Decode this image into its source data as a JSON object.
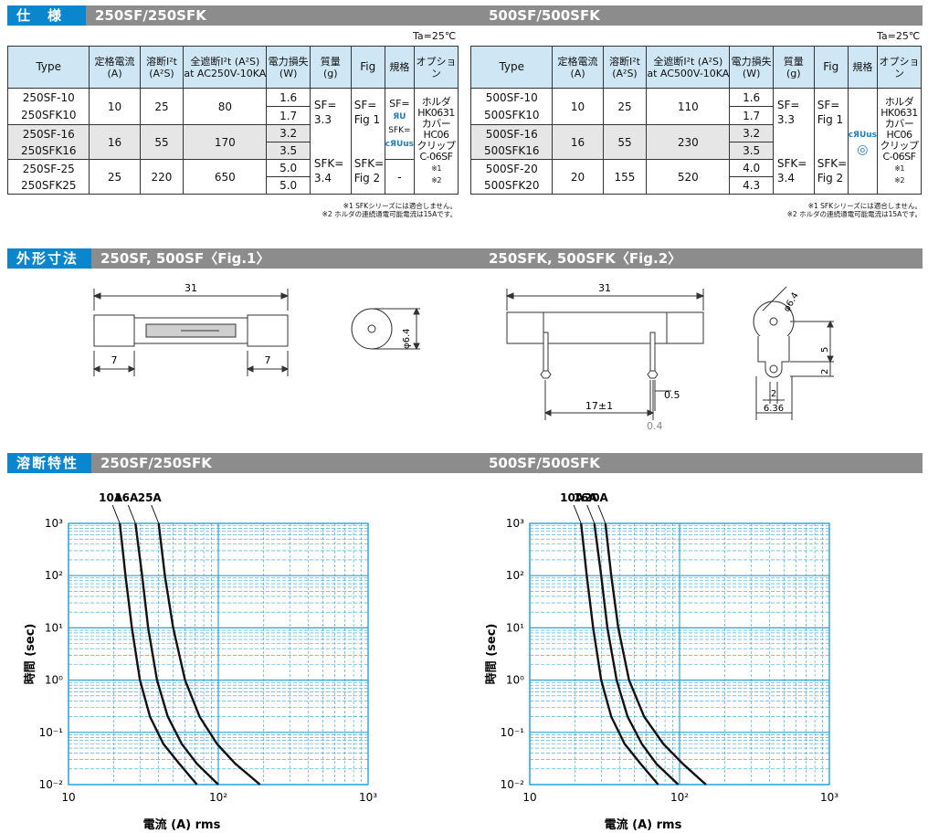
{
  "spec": {
    "tag": "仕　様",
    "title_left": "250SF/250SFK",
    "title_right": "500SF/500SFK",
    "ta": "Ta=25℃",
    "left": {
      "headers": [
        "Type",
        "定格電流\n(A)",
        "溶断I²t\n(A²S)",
        "全遮断I²t (A²S)\nat AC250V-10KA",
        "電力損失\n(W)",
        "質量\n(g)",
        "Fig",
        "規格",
        "オプション"
      ],
      "rows": [
        {
          "types": [
            "250SF-10",
            "250SFK10"
          ],
          "rated": "10",
          "melt": "25",
          "total": "80",
          "loss": [
            "1.6",
            "1.7"
          ]
        },
        {
          "types": [
            "250SF-16",
            "250SFK16"
          ],
          "rated": "16",
          "melt": "55",
          "total": "170",
          "loss": [
            "3.2",
            "3.5"
          ]
        },
        {
          "types": [
            "250SF-25",
            "250SFK25"
          ],
          "rated": "25",
          "melt": "220",
          "total": "650",
          "loss": [
            "5.0",
            "5.0"
          ]
        }
      ],
      "mass": [
        "SF=",
        "3.3",
        "SFK=",
        "3.4"
      ],
      "fig": [
        "SF=",
        "Fig 1",
        "SFK=",
        "Fig 2"
      ],
      "std": [
        "SF=",
        "SFK=",
        "-"
      ],
      "option": [
        "ホルダ",
        "HK0631",
        "カバー",
        "HC06",
        "クリップ",
        "C-06SF",
        "※1",
        "※2"
      ]
    },
    "right": {
      "headers": [
        "Type",
        "定格電流\n(A)",
        "溶断I²t\n(A²S)",
        "全遮断I²t (A²S)\nat AC500V-10KA",
        "電力損失\n(W)",
        "質量\n(g)",
        "Fig",
        "規格",
        "オプション"
      ],
      "rows": [
        {
          "types": [
            "500SF-10",
            "500SFK10"
          ],
          "rated": "10",
          "melt": "25",
          "total": "110",
          "loss": [
            "1.6",
            "1.7"
          ]
        },
        {
          "types": [
            "500SF-16",
            "500SFK16"
          ],
          "rated": "16",
          "melt": "55",
          "total": "230",
          "loss": [
            "3.2",
            "3.5"
          ]
        },
        {
          "types": [
            "500SF-20",
            "500SFK20"
          ],
          "rated": "20",
          "melt": "155",
          "total": "520",
          "loss": [
            "4.0",
            "4.3"
          ]
        }
      ],
      "mass": [
        "SF=",
        "3.3",
        "SFK=",
        "3.4"
      ],
      "fig": [
        "SF=",
        "Fig 1",
        "SFK=",
        "Fig 2"
      ],
      "option": [
        "ホルダ",
        "HK0631",
        "カバー",
        "HC06",
        "クリップ",
        "C-06SF",
        "※1",
        "※2"
      ]
    },
    "notes": [
      "※1 SFKシリーズには適合しません。",
      "※2 ホルダの連続通電可能電流は15Aです。"
    ]
  },
  "dims": {
    "tag": "外形寸法",
    "title_left": "250SF, 500SF〈Fig.1〉",
    "title_right": "250SFK, 500SFK〈Fig.2〉",
    "fig1": {
      "length": "31",
      "cap_left": "7",
      "cap_right": "7",
      "dia": "φ6.4"
    },
    "fig2": {
      "length": "31",
      "pitch": "17±1",
      "thick": "0.5",
      "thin": "0.4",
      "dia": "φ6.4",
      "h5": "5",
      "h2": "2",
      "w2": "2",
      "w636": "6.36"
    }
  },
  "curves": {
    "tag": "溶断特性",
    "title_left": "250SF/250SFK",
    "title_right": "500SF/500SFK",
    "ylabel": "時間 (sec)",
    "xlabel": "電流 (A) rms",
    "y_ticks": [
      "10³",
      "10²",
      "10¹",
      "10⁰",
      "10⁻¹",
      "10⁻²"
    ],
    "x_ticks": [
      "10",
      "10²",
      "10³"
    ]
  },
  "chart_data": [
    {
      "type": "line",
      "title": "250SF/250SFK",
      "xlabel": "電流 (A) rms",
      "ylabel": "時間 (sec)",
      "x_scale": "log",
      "y_scale": "log",
      "xlim": [
        10,
        1000
      ],
      "ylim": [
        0.01,
        1000
      ],
      "grid": true,
      "series": [
        {
          "name": "10A",
          "x": [
            22,
            24,
            26.5,
            30,
            35,
            43,
            55,
            72
          ],
          "y": [
            1000,
            100,
            10,
            1,
            0.2,
            0.06,
            0.025,
            0.01
          ]
        },
        {
          "name": "16A",
          "x": [
            28,
            31,
            34,
            39,
            46,
            57,
            72,
            100
          ],
          "y": [
            1000,
            100,
            10,
            1,
            0.2,
            0.06,
            0.025,
            0.01
          ]
        },
        {
          "name": "25A",
          "x": [
            40,
            44,
            50,
            60,
            75,
            98,
            130,
            190
          ],
          "y": [
            1000,
            100,
            10,
            1,
            0.2,
            0.06,
            0.025,
            0.01
          ]
        }
      ]
    },
    {
      "type": "line",
      "title": "500SF/500SFK",
      "xlabel": "電流 (A) rms",
      "ylabel": "時間 (sec)",
      "x_scale": "log",
      "y_scale": "log",
      "xlim": [
        10,
        1000
      ],
      "ylim": [
        0.01,
        1000
      ],
      "grid": true,
      "series": [
        {
          "name": "10A",
          "x": [
            22,
            24,
            26.5,
            30,
            35,
            43,
            55,
            72
          ],
          "y": [
            1000,
            100,
            10,
            1,
            0.2,
            0.06,
            0.025,
            0.01
          ]
        },
        {
          "name": "16A",
          "x": [
            27,
            30,
            33,
            38,
            45,
            56,
            70,
            98
          ],
          "y": [
            1000,
            100,
            10,
            1,
            0.2,
            0.06,
            0.025,
            0.01
          ]
        },
        {
          "name": "20A",
          "x": [
            32,
            35,
            39,
            46,
            58,
            78,
            105,
            150
          ],
          "y": [
            1000,
            100,
            10,
            1,
            0.2,
            0.06,
            0.025,
            0.01
          ]
        }
      ]
    }
  ],
  "colors": {
    "accent": "#0a86cf",
    "bar": "#8c8c8c",
    "header": "#cfe6f4",
    "grid": "#29a3dc"
  }
}
